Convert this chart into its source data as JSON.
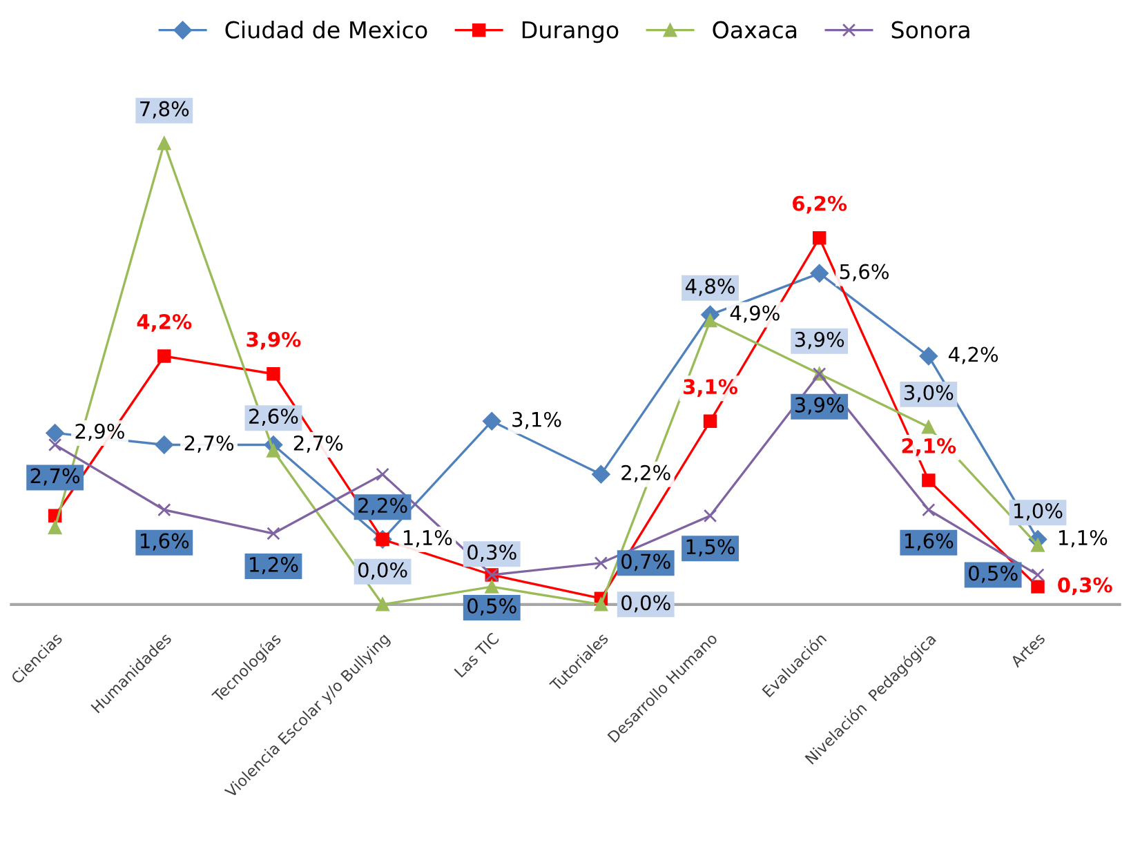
{
  "chart_data": {
    "type": "line",
    "categories": [
      "Ciencias",
      "Humanidades",
      "Tecnologías",
      "Violencia Escolar y/o Bullying",
      "Las TIC",
      "Tutoriales",
      "Desarrollo Humano",
      "Evaluación",
      "Nivelación  Pedagógica",
      "Artes"
    ],
    "series": [
      {
        "name": "Ciudad de Mexico",
        "color": "#4f81bd",
        "marker": "diamond",
        "values": [
          2.9,
          2.7,
          2.7,
          1.1,
          3.1,
          2.2,
          4.9,
          5.6,
          4.2,
          1.1
        ],
        "value_labels": [
          "2,9%",
          "2,7%",
          "2,7%",
          "1,1%",
          "3,1%",
          "2,2%",
          "4,9%",
          "5,6%",
          "4,2%",
          "1,1%"
        ]
      },
      {
        "name": "Durango",
        "color": "#ff0000",
        "marker": "square",
        "values": [
          1.5,
          4.2,
          3.9,
          1.1,
          0.5,
          0.1,
          3.1,
          6.2,
          2.1,
          0.3
        ],
        "value_labels": [
          null,
          "4,2%",
          "3,9%",
          null,
          null,
          null,
          "3,1%",
          "6,2%",
          "2,1%",
          "0,3%"
        ]
      },
      {
        "name": "Oaxaca",
        "color": "#9bbb59",
        "marker": "triangle",
        "values": [
          1.3,
          7.8,
          2.6,
          0.0,
          0.3,
          0.0,
          4.8,
          3.9,
          3.0,
          1.0
        ],
        "value_labels": [
          null,
          "7,8%",
          "2,6%",
          "0,0%",
          "0,3%",
          "0,0%",
          "4,8%",
          "3,9%",
          "3,0%",
          "1,0%"
        ]
      },
      {
        "name": "Sonora",
        "color": "#8064a2",
        "marker": "cross",
        "values": [
          2.7,
          1.6,
          1.2,
          2.2,
          0.5,
          0.7,
          1.5,
          3.9,
          1.6,
          0.5
        ],
        "value_labels": [
          "2,7%",
          "1,6%",
          "1,2%",
          "2,2%",
          "0,5%",
          "0,7%",
          "1,5%",
          "3,9%",
          "1,6%",
          "0,5%"
        ]
      }
    ],
    "legend": "top",
    "grid": false
  }
}
